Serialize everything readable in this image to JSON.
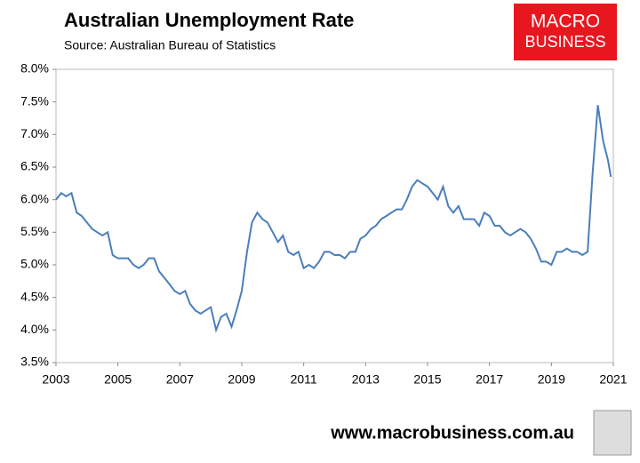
{
  "chart_data": {
    "type": "line",
    "title": "Australian Unemployment Rate",
    "subtitle": "Source: Australian Bureau of Statistics",
    "logo": [
      "MACRO",
      "BUSINESS"
    ],
    "website": "www.macrobusiness.com.au",
    "x": [
      2003.0,
      2003.17,
      2003.33,
      2003.5,
      2003.67,
      2003.83,
      2004.0,
      2004.17,
      2004.33,
      2004.5,
      2004.67,
      2004.83,
      2005.0,
      2005.17,
      2005.33,
      2005.5,
      2005.67,
      2005.83,
      2006.0,
      2006.17,
      2006.33,
      2006.5,
      2006.67,
      2006.83,
      2007.0,
      2007.17,
      2007.33,
      2007.5,
      2007.67,
      2007.83,
      2008.0,
      2008.17,
      2008.33,
      2008.5,
      2008.67,
      2008.83,
      2009.0,
      2009.17,
      2009.33,
      2009.5,
      2009.67,
      2009.83,
      2010.0,
      2010.17,
      2010.33,
      2010.5,
      2010.67,
      2010.83,
      2011.0,
      2011.17,
      2011.33,
      2011.5,
      2011.67,
      2011.83,
      2012.0,
      2012.17,
      2012.33,
      2012.5,
      2012.67,
      2012.83,
      2013.0,
      2013.17,
      2013.33,
      2013.5,
      2013.67,
      2013.83,
      2014.0,
      2014.17,
      2014.33,
      2014.5,
      2014.67,
      2014.83,
      2015.0,
      2015.17,
      2015.33,
      2015.5,
      2015.67,
      2015.83,
      2016.0,
      2016.17,
      2016.33,
      2016.5,
      2016.67,
      2016.83,
      2017.0,
      2017.17,
      2017.33,
      2017.5,
      2017.67,
      2017.83,
      2018.0,
      2018.17,
      2018.33,
      2018.5,
      2018.67,
      2018.83,
      2019.0,
      2019.17,
      2019.33,
      2019.5,
      2019.67,
      2019.83,
      2020.0,
      2020.17,
      2020.33,
      2020.5,
      2020.67,
      2020.83,
      2020.92
    ],
    "series": [
      {
        "color": "#4a7ebb",
        "values": [
          6.0,
          6.1,
          6.05,
          6.1,
          5.8,
          5.75,
          5.65,
          5.55,
          5.5,
          5.45,
          5.5,
          5.15,
          5.1,
          5.1,
          5.1,
          5.0,
          4.95,
          5.0,
          5.1,
          5.1,
          4.9,
          4.8,
          4.7,
          4.6,
          4.55,
          4.6,
          4.4,
          4.3,
          4.25,
          4.3,
          4.35,
          4.0,
          4.2,
          4.25,
          4.05,
          4.3,
          4.6,
          5.2,
          5.65,
          5.8,
          5.7,
          5.65,
          5.5,
          5.35,
          5.45,
          5.2,
          5.15,
          5.2,
          4.95,
          5.0,
          4.95,
          5.05,
          5.2,
          5.2,
          5.15,
          5.15,
          5.1,
          5.2,
          5.2,
          5.4,
          5.45,
          5.55,
          5.6,
          5.7,
          5.75,
          5.8,
          5.85,
          5.85,
          6.0,
          6.2,
          6.3,
          6.25,
          6.2,
          6.1,
          6.0,
          6.2,
          5.9,
          5.8,
          5.9,
          5.7,
          5.7,
          5.7,
          5.6,
          5.8,
          5.75,
          5.6,
          5.6,
          5.5,
          5.45,
          5.5,
          5.55,
          5.5,
          5.4,
          5.25,
          5.05,
          5.05,
          5.0,
          5.2,
          5.2,
          5.25,
          5.2,
          5.2,
          5.15,
          5.2,
          6.4,
          7.45,
          6.9,
          6.6,
          6.35
        ]
      }
    ],
    "xlim": [
      2003,
      2021
    ],
    "xticks": [
      2003,
      2005,
      2007,
      2009,
      2011,
      2013,
      2015,
      2017,
      2019,
      2021
    ],
    "ylim": [
      3.5,
      8.0
    ],
    "yticks": [
      {
        "value": 3.5,
        "label": "3.5%"
      },
      {
        "value": 4.0,
        "label": "4.0%"
      },
      {
        "value": 4.5,
        "label": "4.5%"
      },
      {
        "value": 5.0,
        "label": "5.0%"
      },
      {
        "value": 5.5,
        "label": "5.5%"
      },
      {
        "value": 6.0,
        "label": "6.0%"
      },
      {
        "value": 6.5,
        "label": "6.5%"
      },
      {
        "value": 7.0,
        "label": "7.0%"
      },
      {
        "value": 7.5,
        "label": "7.5%"
      },
      {
        "value": 8.0,
        "label": "8.0%"
      }
    ]
  }
}
